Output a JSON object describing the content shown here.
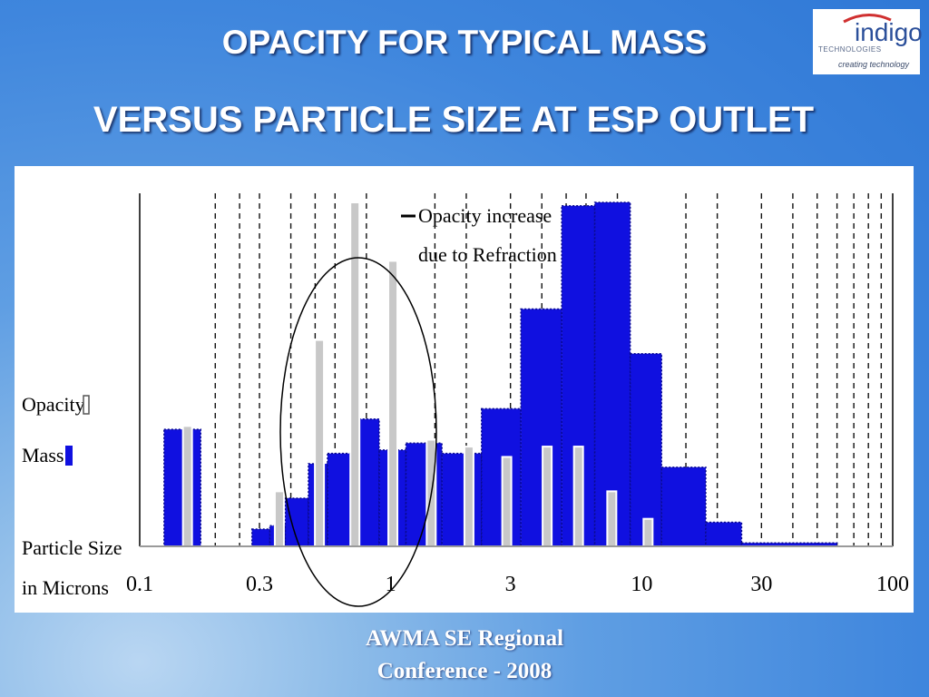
{
  "slide": {
    "title_line1": "OPACITY FOR TYPICAL MASS",
    "title_line2": "VERSUS PARTICLE SIZE AT ESP OUTLET",
    "footer_line1": "AWMA SE Regional",
    "footer_line2": "Conference - 2008"
  },
  "logo": {
    "word": "indigo",
    "sub": "TECHNOLOGIES",
    "tagline": "creating technology",
    "colors": {
      "word": "#2b4f9a",
      "arc": "#d03030"
    }
  },
  "chart_data": {
    "type": "bar",
    "x_scale": "log",
    "xlim": [
      0.1,
      100
    ],
    "ylim": [
      0,
      100
    ],
    "xlabel": "Particle Size in Microns",
    "ylabel": "",
    "x_tick_labels": [
      "0.1",
      "0.3",
      "1",
      "3",
      "10",
      "30",
      "100"
    ],
    "x_ticks": [
      0.1,
      0.3,
      1,
      3,
      10,
      30,
      100
    ],
    "grid": "dashed vertical lines at size-bin boundaries",
    "annotation": "Opacity increase due to Refraction",
    "annotation_lines": [
      "Opacity increase",
      "due to Refraction"
    ],
    "colors": {
      "mass": "#1010e0",
      "opacity": "#c8c8c8"
    },
    "series": [
      {
        "name": "Mass",
        "bars": [
          {
            "x0": 0.125,
            "x1": 0.175,
            "value": 34
          },
          {
            "x0": 0.28,
            "x1": 0.33,
            "value": 5
          },
          {
            "x0": 0.33,
            "x1": 0.38,
            "value": 6
          },
          {
            "x0": 0.38,
            "x1": 0.47,
            "value": 14
          },
          {
            "x0": 0.47,
            "x1": 0.56,
            "value": 24
          },
          {
            "x0": 0.56,
            "x1": 0.7,
            "value": 27
          },
          {
            "x0": 0.7,
            "x1": 0.9,
            "value": 37
          },
          {
            "x0": 0.9,
            "x1": 1.15,
            "value": 28
          },
          {
            "x0": 1.15,
            "x1": 1.6,
            "value": 30
          },
          {
            "x0": 1.6,
            "x1": 2.3,
            "value": 27
          },
          {
            "x0": 2.3,
            "x1": 3.3,
            "value": 40
          },
          {
            "x0": 3.3,
            "x1": 4.8,
            "value": 69
          },
          {
            "x0": 4.8,
            "x1": 6.5,
            "value": 99
          },
          {
            "x0": 6.5,
            "x1": 9.0,
            "value": 100
          },
          {
            "x0": 9.0,
            "x1": 12.0,
            "value": 56
          },
          {
            "x0": 12.0,
            "x1": 18.0,
            "value": 23
          },
          {
            "x0": 18.0,
            "x1": 25.0,
            "value": 7
          },
          {
            "x0": 25.0,
            "x1": 60.0,
            "value": 1
          }
        ]
      },
      {
        "name": "Opacity",
        "bars": [
          {
            "x": 0.155,
            "value": 35
          },
          {
            "x": 0.36,
            "value": 16
          },
          {
            "x": 0.52,
            "value": 60
          },
          {
            "x": 0.72,
            "value": 100
          },
          {
            "x": 1.02,
            "value": 83
          },
          {
            "x": 1.45,
            "value": 31
          },
          {
            "x": 2.05,
            "value": 29
          },
          {
            "x": 2.9,
            "value": 26
          },
          {
            "x": 4.2,
            "value": 29
          },
          {
            "x": 5.6,
            "value": 29
          },
          {
            "x": 7.6,
            "value": 16
          },
          {
            "x": 10.6,
            "value": 8
          }
        ]
      }
    ]
  }
}
